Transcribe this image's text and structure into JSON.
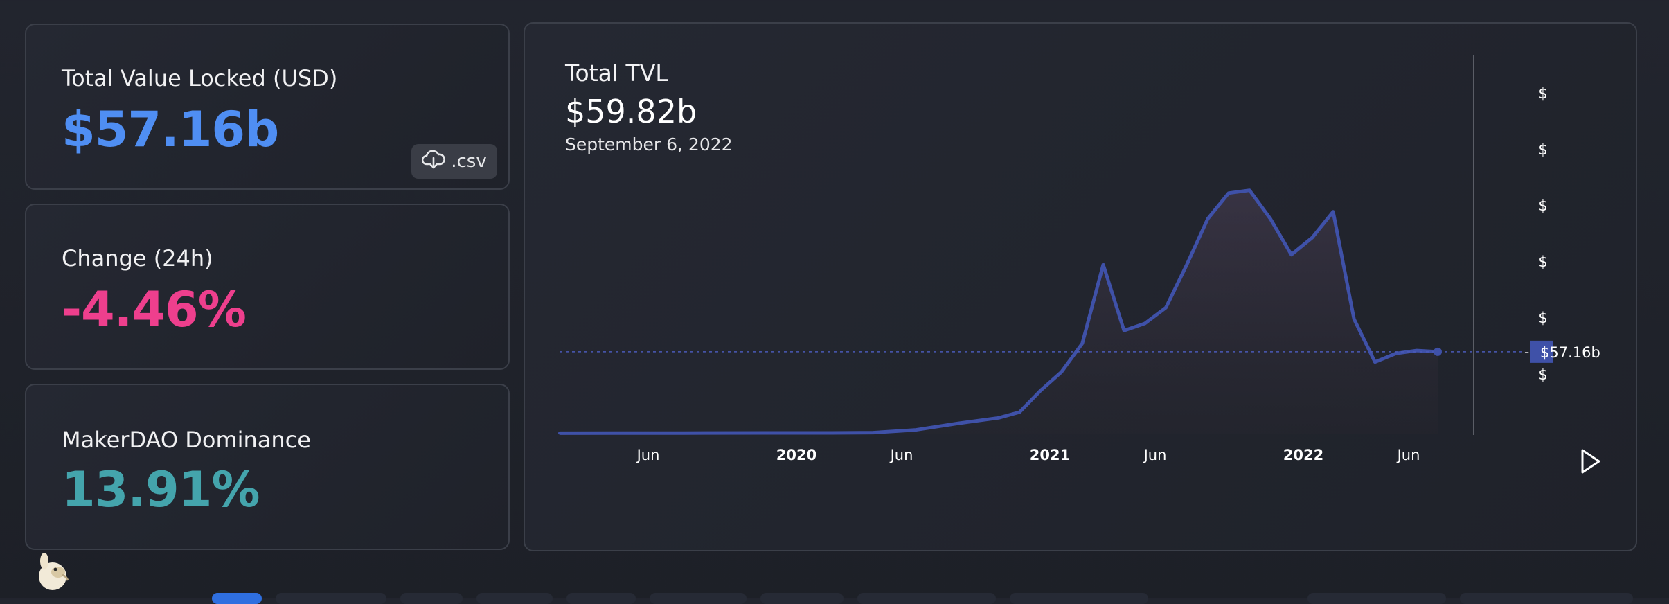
{
  "stats": {
    "tvl": {
      "label": "Total Value Locked (USD)",
      "value": "$57.16b",
      "color": "#4f8ef3"
    },
    "csv": {
      "label": ".csv",
      "icon": "cloud-download-icon"
    },
    "change": {
      "label": "Change (24h)",
      "value": "-4.46%",
      "color": "#ee3f8d"
    },
    "dominance": {
      "label": "MakerDAO Dominance",
      "value": "13.91%",
      "color": "#44a4ac"
    }
  },
  "chart": {
    "title": "Total TVL",
    "hover_value": "$59.82b",
    "hover_date": "September 6, 2022",
    "current_label": "$57.16b",
    "y_tick_labels": [
      "$",
      "$",
      "$",
      "$",
      "$",
      "$"
    ],
    "x_tick_labels": [
      "Jun",
      "2020",
      "Jun",
      "2021",
      "Jun",
      "2022",
      "Jun"
    ],
    "play_icon": "play-icon",
    "line_color": "#3f51a8"
  },
  "chart_data": {
    "type": "area",
    "title": "Total TVL",
    "x_ticks": [
      "Jun",
      "2020",
      "Jun",
      "2021",
      "Jun",
      "2022",
      "Jun"
    ],
    "series": [
      {
        "values": [
          {
            "x": "2019-03",
            "y": 0.3
          },
          {
            "x": "2019-06",
            "y": 0.4
          },
          {
            "x": "2019-09",
            "y": 0.4
          },
          {
            "x": "2020-01",
            "y": 0.5
          },
          {
            "x": "2020-04",
            "y": 0.5
          },
          {
            "x": "2020-06",
            "y": 0.7
          },
          {
            "x": "2020-08",
            "y": 2.5
          },
          {
            "x": "2020-10",
            "y": 7.0
          },
          {
            "x": "2020-12",
            "y": 11.0
          },
          {
            "x": "2021-01",
            "y": 15.0
          },
          {
            "x": "2021-02",
            "y": 30.0
          },
          {
            "x": "2021-03",
            "y": 43.0
          },
          {
            "x": "2021-04",
            "y": 63.0
          },
          {
            "x": "2021-05",
            "y": 118.0
          },
          {
            "x": "2021-06",
            "y": 72.0
          },
          {
            "x": "2021-07",
            "y": 77.0
          },
          {
            "x": "2021-08",
            "y": 88.0
          },
          {
            "x": "2021-09",
            "y": 118.0
          },
          {
            "x": "2021-10",
            "y": 150.0
          },
          {
            "x": "2021-11",
            "y": 168.0
          },
          {
            "x": "2021-12",
            "y": 170.0
          },
          {
            "x": "2022-01",
            "y": 150.0
          },
          {
            "x": "2022-02",
            "y": 125.0
          },
          {
            "x": "2022-03",
            "y": 137.0
          },
          {
            "x": "2022-04",
            "y": 155.0
          },
          {
            "x": "2022-05",
            "y": 80.0
          },
          {
            "x": "2022-06",
            "y": 50.0
          },
          {
            "x": "2022-07",
            "y": 56.0
          },
          {
            "x": "2022-08",
            "y": 58.0
          },
          {
            "x": "2022-09",
            "y": 57.16
          }
        ]
      }
    ],
    "grid": false
  }
}
